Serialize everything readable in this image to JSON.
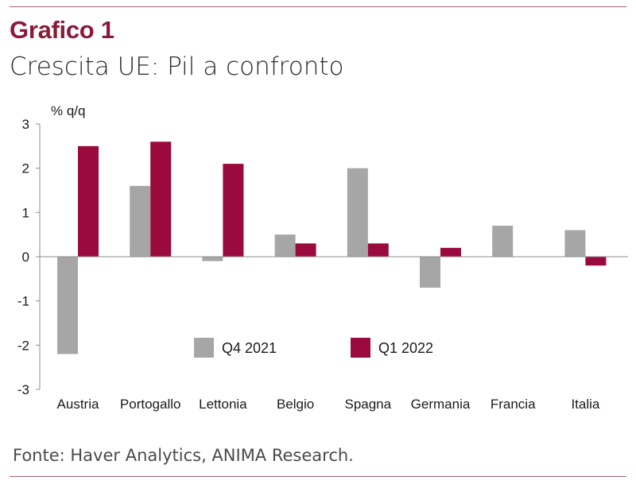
{
  "header": {
    "chart_label": "Grafico 1",
    "title": "Crescita UE: Pil a confronto"
  },
  "footer": {
    "source": "Fonte: Haver Analytics, ANIMA Research."
  },
  "colors": {
    "q4_2021": "#a6a6a6",
    "q1_2022": "#9b0a3c",
    "accent": "#8b1a3a"
  },
  "chart_data": {
    "type": "bar",
    "title": "",
    "ylabel": "% q/q",
    "xlabel": "",
    "ylim": [
      -3,
      3
    ],
    "yticks": [
      "3",
      "2",
      "1",
      "0",
      "-1",
      "-2",
      "-3"
    ],
    "categories": [
      "Austria",
      "Portogallo",
      "Lettonia",
      "Belgio",
      "Spagna",
      "Germania",
      "Francia",
      "Italia"
    ],
    "series": [
      {
        "name": "Q4 2021",
        "values": [
          -2.2,
          1.6,
          -0.1,
          0.5,
          2.0,
          -0.7,
          0.7,
          0.6
        ]
      },
      {
        "name": "Q1 2022",
        "values": [
          2.5,
          2.6,
          2.1,
          0.3,
          0.3,
          0.2,
          0.0,
          -0.2
        ]
      }
    ],
    "legend": "inside-bottom",
    "grid": false
  }
}
